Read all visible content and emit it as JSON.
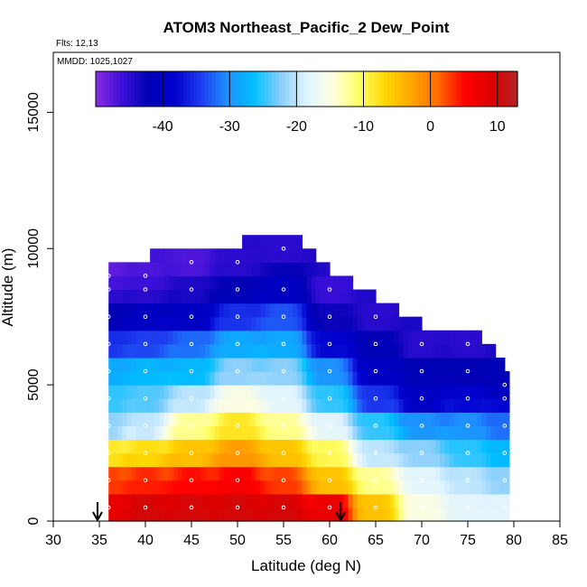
{
  "chart_data": {
    "type": "heatmap",
    "title": "ATOM3 Northeast_Pacific_2 Dew_Point",
    "flights_label": "Flts: 12,13",
    "dates_label": "MMDD: 1025,1027",
    "xlabel": "Latitude (deg N)",
    "ylabel": "Altitude (m)",
    "xlim": [
      30,
      85
    ],
    "ylim": [
      0,
      17200
    ],
    "x_ticks": [
      30,
      35,
      40,
      45,
      50,
      55,
      60,
      65,
      70,
      75,
      80,
      85
    ],
    "y_ticks": [
      0,
      5000,
      10000,
      15000
    ],
    "colorbar": {
      "range": [
        -50,
        13
      ],
      "ticks": [
        -40,
        -30,
        -20,
        -10,
        0,
        10
      ],
      "colors": [
        "#8a2be2",
        "#3b10d8",
        "#0000b4",
        "#0000cd",
        "#1e3cf0",
        "#1e90ff",
        "#00bfff",
        "#87cefa",
        "#e0f4ff",
        "#ffffe0",
        "#ffff66",
        "#ffd700",
        "#ffa500",
        "#ff6a00",
        "#ff0000",
        "#dd0000",
        "#b22222"
      ]
    },
    "latitude_bins": [
      39.5,
      41.5,
      43.5,
      45.5,
      47.5,
      49.5,
      51.5,
      53.5,
      55.5,
      57.5,
      59.5,
      61.5,
      63.5,
      65.5,
      67.5,
      69.5,
      71.5,
      73.5,
      75.5,
      77.5,
      79.5
    ],
    "altitude_bins": [
      500,
      1500,
      2500,
      3500,
      4500,
      5500,
      6500,
      7500,
      8500,
      9500
    ],
    "profiles": [
      {
        "lat": 36,
        "alt": [
          500,
          1500,
          2500,
          3500,
          4500,
          5500,
          6500,
          7500,
          8500,
          9000
        ],
        "dew_point": [
          8,
          3,
          -8,
          -22,
          -25,
          -28,
          -35,
          -42,
          -45,
          -48
        ]
      },
      {
        "lat": 40,
        "alt": [
          500,
          1500,
          2500,
          3500,
          4500,
          5500,
          6500,
          7500,
          8500,
          9000
        ],
        "dew_point": [
          10,
          4,
          -7,
          -20,
          -24,
          -27,
          -34,
          -40,
          -45,
          -47
        ]
      },
      {
        "lat": 45,
        "alt": [
          500,
          1500,
          2500,
          3500,
          4500,
          5500,
          6500,
          7500,
          8500,
          9500
        ],
        "dew_point": [
          10,
          5,
          -5,
          -12,
          -20,
          -27,
          -32,
          -40,
          -44,
          -47
        ]
      },
      {
        "lat": 50,
        "alt": [
          500,
          1500,
          2500,
          3500,
          4500,
          5500,
          6500,
          7500,
          8500,
          9500
        ],
        "dew_point": [
          10,
          6,
          -2,
          -8,
          -15,
          -22,
          -28,
          -35,
          -42,
          -45
        ]
      },
      {
        "lat": 55,
        "alt": [
          500,
          1500,
          2500,
          3500,
          4500,
          5500,
          6500,
          7500,
          8500,
          10000
        ],
        "dew_point": [
          10,
          3,
          -5,
          -12,
          -18,
          -22,
          -28,
          -33,
          -40,
          -45
        ]
      },
      {
        "lat": 60,
        "alt": [
          500,
          1500,
          2500,
          3500,
          4500,
          5500,
          6500,
          7500,
          8500
        ],
        "dew_point": [
          8,
          -5,
          -10,
          -18,
          -25,
          -30,
          -38,
          -43,
          -46
        ]
      },
      {
        "lat": 65,
        "alt": [
          500,
          1500,
          2500,
          3500,
          4500,
          5500,
          6500,
          7500
        ],
        "dew_point": [
          -5,
          -12,
          -20,
          -25,
          -35,
          -40,
          -42,
          -45
        ]
      },
      {
        "lat": 70,
        "alt": [
          500,
          1500,
          2500,
          3500,
          4500,
          5500,
          6500
        ],
        "dew_point": [
          -15,
          -18,
          -22,
          -30,
          -40,
          -42,
          -45
        ]
      },
      {
        "lat": 75,
        "alt": [
          500,
          1500,
          2500,
          3500,
          4500,
          5500,
          6500
        ],
        "dew_point": [
          -18,
          -20,
          -25,
          -30,
          -38,
          -42,
          -45
        ]
      },
      {
        "lat": 79,
        "alt": [
          500,
          1500,
          2500,
          3500,
          4500,
          5000
        ],
        "dew_point": [
          -18,
          -22,
          -27,
          -32,
          -38,
          -42
        ]
      }
    ],
    "arrows_lat": [
      34.8,
      61.2
    ]
  }
}
